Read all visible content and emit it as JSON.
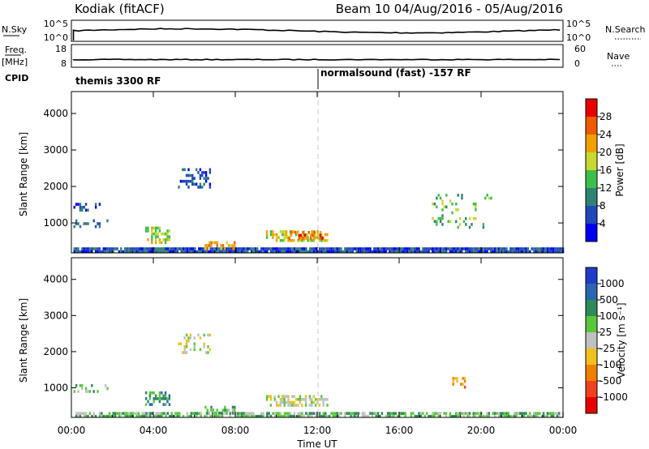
{
  "header": {
    "station_title": "Kodiak (fitACF)",
    "beam_title": "Beam 10 04/Aug/2016 - 05/Aug/2016"
  },
  "status_panels": {
    "left_labels": {
      "nsky": "N.Sky",
      "nsky_ticks": [
        "10^5",
        "10^0"
      ],
      "freq": "Freq.",
      "freq_unit": "[MHz]",
      "freq_ticks": [
        "18",
        "8"
      ],
      "cpid": "CPID"
    },
    "right_labels": {
      "nsearch": "N.Search",
      "nsearch_ticks": [
        "10^5",
        "10^0"
      ],
      "nave_ticks": [
        "60",
        "0"
      ],
      "nave": "Nave"
    },
    "modes": [
      {
        "label": "themis 3300 RF",
        "start_hour": 0
      },
      {
        "label": "normalsound (fast) -157 RF",
        "start_hour": 12
      }
    ]
  },
  "chart_data": [
    {
      "type": "heatmap",
      "name": "power",
      "ylabel": "Slant Range [km]",
      "ylim": [
        180,
        4600
      ],
      "yticks": [
        1000,
        2000,
        3000,
        4000
      ],
      "x_range_hours": [
        0,
        24
      ],
      "colorbar": {
        "label": "Power [dB]",
        "ticks": [
          4,
          8,
          12,
          16,
          20,
          24,
          28
        ],
        "range": [
          0,
          32
        ],
        "colors": [
          "#0000f0",
          "#1f48b8",
          "#2e8272",
          "#3cbf4a",
          "#c8d830",
          "#f0a000",
          "#f05a00",
          "#e80000"
        ]
      },
      "scatter_regions": [
        {
          "hours": [
            0.1,
            24.0
          ],
          "km": [
            200,
            330
          ],
          "density": 0.95,
          "level": 1
        },
        {
          "hours": [
            9.5,
            12.5
          ],
          "km": [
            500,
            800
          ],
          "density": 0.6,
          "level": 4
        },
        {
          "hours": [
            10.5,
            12.3
          ],
          "km": [
            550,
            780
          ],
          "density": 0.5,
          "level": 6
        },
        {
          "hours": [
            3.6,
            4.8
          ],
          "km": [
            500,
            900
          ],
          "density": 0.55,
          "level": 4
        },
        {
          "hours": [
            6.5,
            8.0
          ],
          "km": [
            320,
            500
          ],
          "density": 0.6,
          "level": 5
        },
        {
          "hours": [
            5.2,
            6.8
          ],
          "km": [
            2000,
            2500
          ],
          "density": 0.45,
          "level": 1
        },
        {
          "hours": [
            0.1,
            1.8
          ],
          "km": [
            900,
            1100
          ],
          "density": 0.35,
          "level": 1
        },
        {
          "hours": [
            0.1,
            1.5
          ],
          "km": [
            1350,
            1550
          ],
          "density": 0.3,
          "level": 1
        },
        {
          "hours": [
            17.5,
            20.5
          ],
          "km": [
            900,
            1800
          ],
          "density": 0.15,
          "level": 3
        }
      ]
    },
    {
      "type": "heatmap",
      "name": "velocity",
      "xlabel": "Time UT",
      "ylabel": "Slant Range [km]",
      "ylim": [
        180,
        4600
      ],
      "yticks": [
        1000,
        2000,
        3000,
        4000
      ],
      "x_range_hours": [
        0,
        24
      ],
      "xtick_labels": [
        "00:00",
        "04:00",
        "08:00",
        "12:00",
        "16:00",
        "20:00",
        "00:00"
      ],
      "colorbar": {
        "label": "Velocity [m s⁻¹]",
        "ticks": [
          "1000",
          "500",
          "100",
          "25",
          "-25",
          "-100",
          "-500",
          "-1000"
        ],
        "colors": [
          "#1f3cc8",
          "#2a66b0",
          "#2e8a5a",
          "#58c83a",
          "#c0c0c0",
          "#f0c020",
          "#f08000",
          "#f04020",
          "#e80000"
        ]
      },
      "scatter_regions": [
        {
          "hours": [
            0.1,
            24.0
          ],
          "km": [
            200,
            330
          ],
          "density": 0.7,
          "level": 3
        },
        {
          "hours": [
            9.5,
            12.5
          ],
          "km": [
            500,
            800
          ],
          "density": 0.6,
          "level": 4
        },
        {
          "hours": [
            3.6,
            4.8
          ],
          "km": [
            500,
            900
          ],
          "density": 0.5,
          "level": 2
        },
        {
          "hours": [
            6.5,
            8.0
          ],
          "km": [
            320,
            500
          ],
          "density": 0.5,
          "level": 3
        },
        {
          "hours": [
            5.2,
            6.8
          ],
          "km": [
            2000,
            2500
          ],
          "density": 0.3,
          "level": 4
        },
        {
          "hours": [
            0.1,
            1.8
          ],
          "km": [
            900,
            1100
          ],
          "density": 0.25,
          "level": 3
        },
        {
          "hours": [
            18.5,
            19.2
          ],
          "km": [
            1000,
            1300
          ],
          "density": 0.3,
          "level": 6
        }
      ]
    }
  ],
  "colors": {
    "marker_dashed_line": "#c8c8c8",
    "trace": "#000000"
  }
}
